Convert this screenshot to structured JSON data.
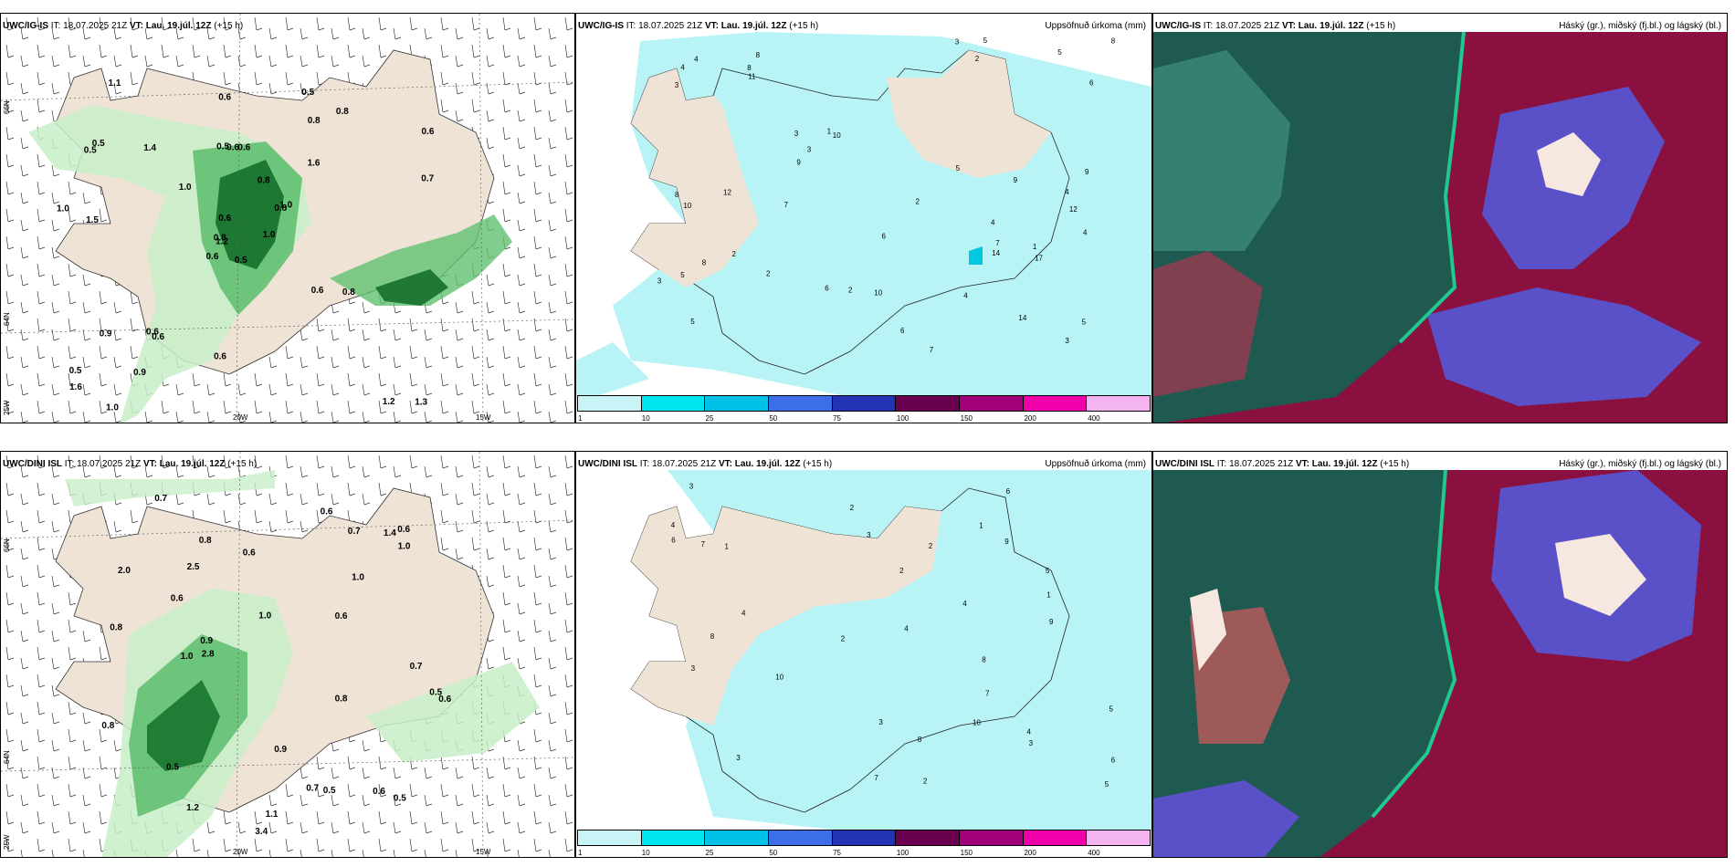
{
  "top": {
    "p1": {
      "model": "UWC/IG-IS",
      "it": "IT: 18.07.2025 21Z",
      "vt_label": "VT:",
      "vt": "Lau. 19.júl. 12Z",
      "lead": "(+15 h)"
    },
    "p2": {
      "model": "UWC/IG-IS",
      "it": "IT: 18.07.2025 21Z",
      "vt_label": "VT:",
      "vt": "Lau. 19.júl. 12Z",
      "lead": "(+15 h)",
      "title": "Uppsöfnuð úrkoma (mm)"
    },
    "p3": {
      "model": "UWC/IG-IS",
      "it": "IT: 18.07.2025 21Z",
      "vt_label": "VT:",
      "vt": "Lau. 19.júl. 12Z",
      "lead": "(+15 h)",
      "title": "Háský (gr.), miðský (fj.bl.) og lágský (bl.)"
    }
  },
  "bottom": {
    "p1": {
      "model": "UWC/DINI ISL",
      "it": "IT: 18.07.2025 21Z",
      "vt_label": "VT:",
      "vt": "Lau. 19.júl. 12Z",
      "lead": "(+15 h)"
    },
    "p2": {
      "model": "UWC/DINI ISL",
      "it": "IT: 18.07.2025 21Z",
      "vt_label": "VT:",
      "vt": "Lau. 19.júl. 12Z",
      "lead": "(+15 h)",
      "title": "Uppsöfnuð úrkoma (mm)"
    },
    "p3": {
      "model": "UWC/DINI ISL",
      "it": "IT: 18.07.2025 21Z",
      "vt_label": "VT:",
      "vt": "Lau. 19.júl. 12Z",
      "lead": "(+15 h)",
      "title": "Háský (gr.), miðský (fj.bl.) og lágský (bl.)"
    }
  },
  "axes": {
    "lat66": "66N",
    "lat64": "64N",
    "lon25": "25W",
    "lon20": "20W",
    "lon15": "15W"
  },
  "legend": {
    "labels": [
      "1",
      "10",
      "25",
      "50",
      "75",
      "100",
      "150",
      "200",
      "400"
    ],
    "colors": [
      "#c8f4f8",
      "#00e6ee",
      "#00c0e8",
      "#3c6ee8",
      "#2432b4",
      "#6a0050",
      "#a0007a",
      "#f000a8",
      "#f4b4f0"
    ]
  },
  "colors": {
    "land": "#efe3d6",
    "sea_precip": "#b8f4f6",
    "green1": "#c8eec8",
    "green2": "#62c072",
    "green3": "#0e6a26",
    "cloud_dark": "#1e5a50",
    "cloud_red": "#8a1040",
    "cloud_blue": "#5a50c8"
  },
  "top_p1_labels": [
    "0.5",
    "0.5",
    "1.2",
    "0.5",
    "0.8",
    "0.6",
    "0.5",
    "0.6",
    "0.8",
    "1.0",
    "1.1",
    "1.3",
    "1.5",
    "0.6",
    "0.6",
    "1.6",
    "1.0",
    "0.5",
    "0.8",
    "0.9",
    "1.0",
    "1.6",
    "0.9",
    "0.6",
    "1.0",
    "0.8",
    "0.5",
    "0.6",
    "1.0",
    "0.6",
    "0.7",
    "0.8",
    "0.6",
    "0.6",
    "1.4",
    "0.8",
    "0.6",
    "1.2"
  ],
  "top_p2_labels": [
    "4",
    "12",
    "5",
    "8",
    "10",
    "14",
    "5",
    "2",
    "3",
    "7",
    "3",
    "8",
    "4",
    "5",
    "6",
    "9",
    "6",
    "2",
    "1",
    "2",
    "8",
    "5",
    "9",
    "4",
    "3",
    "8",
    "7",
    "10",
    "11",
    "9",
    "6",
    "4",
    "3",
    "7",
    "4",
    "17",
    "14",
    "12",
    "10",
    "8",
    "6",
    "5",
    "3",
    "2",
    "1",
    "2",
    "3",
    "4",
    "5"
  ],
  "bottom_p1_labels": [
    "2.0",
    "2.5",
    "0.6",
    "1.1",
    "1.4",
    "3.4",
    "0.8",
    "2.8",
    "0.6",
    "0.6",
    "0.5",
    "0.8",
    "1.0",
    "0.5",
    "0.8",
    "1.2",
    "0.9",
    "0.6",
    "0.5",
    "0.7",
    "0.6",
    "0.7",
    "1.0",
    "0.9",
    "0.7",
    "0.6",
    "1.0",
    "0.6",
    "0.7",
    "1.0",
    "0.8",
    "0.5"
  ],
  "bottom_p2_labels": [
    "2",
    "3",
    "4",
    "5",
    "7",
    "3",
    "2",
    "1",
    "4",
    "3",
    "4",
    "2",
    "8",
    "7",
    "6",
    "9",
    "5",
    "10",
    "8",
    "7",
    "6",
    "3",
    "4",
    "2",
    "1",
    "1",
    "3",
    "5",
    "4",
    "2",
    "3",
    "8",
    "6",
    "9",
    "10"
  ]
}
